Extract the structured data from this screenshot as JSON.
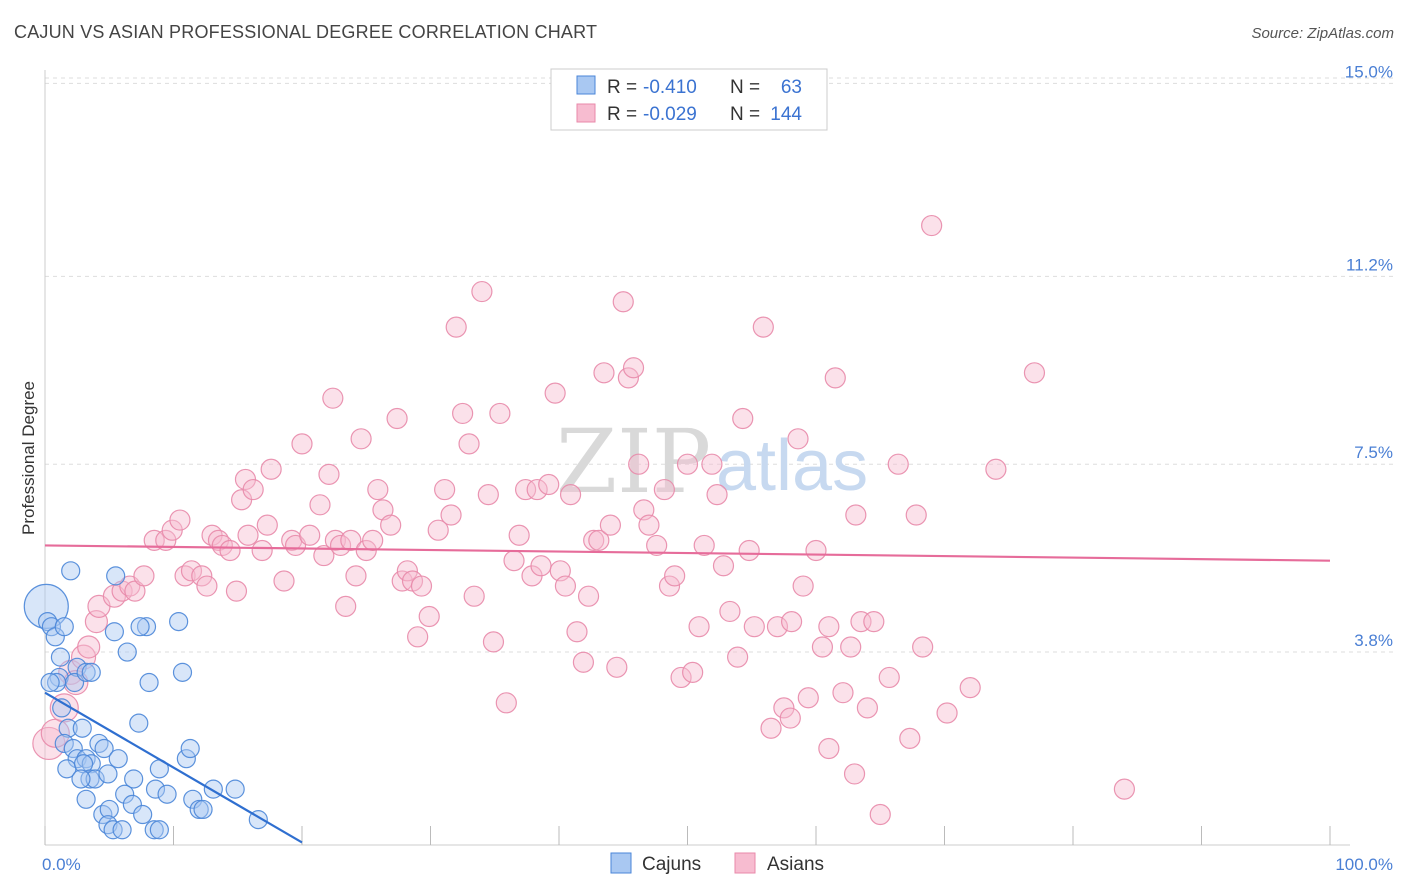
{
  "title": "CAJUN VS ASIAN PROFESSIONAL DEGREE CORRELATION CHART",
  "source": "Source: ZipAtlas.com",
  "watermark": {
    "zip": "ZIP",
    "atlas": "atlas"
  },
  "legend": {
    "rows": [
      {
        "r_label": "R =",
        "r_value": "-0.410",
        "n_label": "N =",
        "n_value": "63"
      },
      {
        "r_label": "R =",
        "r_value": "-0.029",
        "n_label": "N =",
        "n_value": "144"
      }
    ]
  },
  "bottom_legend": [
    "Cajuns",
    "Asians"
  ],
  "colors": {
    "cajun_fill": "#a9c8f2",
    "cajun_stroke": "#4a86d8",
    "cajun_line": "#2f6fd0",
    "asian_fill": "#f7bcd0",
    "asian_stroke": "#e889aa",
    "asian_line": "#e66c9a",
    "grid": "#dddddd",
    "tick_text": "#4a7fd4"
  },
  "chart_data": {
    "type": "scatter",
    "title": "CAJUN VS ASIAN PROFESSIONAL DEGREE CORRELATION CHART",
    "xlabel": "",
    "ylabel": "Professional Degree",
    "xlim": [
      0,
      100
    ],
    "ylim": [
      0,
      15.5
    ],
    "y_ticks": [
      {
        "value": 3.8,
        "label": "3.8%"
      },
      {
        "value": 7.5,
        "label": "7.5%"
      },
      {
        "value": 11.2,
        "label": "11.2%"
      },
      {
        "value": 15.0,
        "label": "15.0%"
      }
    ],
    "x_tick_labels": [
      {
        "value": 0,
        "label": "0.0%"
      },
      {
        "value": 100,
        "label": "100.0%"
      }
    ],
    "series": [
      {
        "name": "Cajuns",
        "r": -0.41,
        "n": 63,
        "trend": {
          "x0": 0,
          "y0": 3.0,
          "x1": 20,
          "y1": 0.05
        },
        "points": [
          [
            0.1,
            4.7,
            22
          ],
          [
            0.2,
            4.4,
            9
          ],
          [
            0.5,
            4.3,
            9
          ],
          [
            0.8,
            4.1,
            9
          ],
          [
            1.1,
            3.3,
            9
          ],
          [
            0.9,
            3.2,
            9
          ],
          [
            0.4,
            3.2,
            9
          ],
          [
            1.2,
            3.7,
            9
          ],
          [
            1.5,
            4.3,
            9
          ],
          [
            2.0,
            5.4,
            9
          ],
          [
            2.5,
            3.5,
            9
          ],
          [
            2.3,
            3.2,
            9
          ],
          [
            3.2,
            3.4,
            9
          ],
          [
            3.6,
            3.4,
            9
          ],
          [
            5.5,
            5.3,
            9
          ],
          [
            5.4,
            4.2,
            9
          ],
          [
            7.9,
            4.3,
            9
          ],
          [
            7.4,
            4.3,
            9
          ],
          [
            10.4,
            4.4,
            9
          ],
          [
            6.4,
            3.8,
            9
          ],
          [
            8.1,
            3.2,
            9
          ],
          [
            10.7,
            3.4,
            9
          ],
          [
            1.3,
            2.7,
            9
          ],
          [
            1.8,
            2.3,
            9
          ],
          [
            2.9,
            2.3,
            9
          ],
          [
            7.3,
            2.4,
            9
          ],
          [
            1.5,
            2.0,
            9
          ],
          [
            2.2,
            1.9,
            9
          ],
          [
            4.2,
            2.0,
            9
          ],
          [
            4.6,
            1.9,
            9
          ],
          [
            2.5,
            1.7,
            9
          ],
          [
            3.2,
            1.7,
            9
          ],
          [
            3.6,
            1.6,
            9
          ],
          [
            5.7,
            1.7,
            9
          ],
          [
            11.0,
            1.7,
            9
          ],
          [
            11.3,
            1.9,
            9
          ],
          [
            1.7,
            1.5,
            9
          ],
          [
            3.0,
            1.6,
            9
          ],
          [
            3.5,
            1.3,
            9
          ],
          [
            3.9,
            1.3,
            9
          ],
          [
            4.9,
            1.4,
            9
          ],
          [
            8.9,
            1.5,
            9
          ],
          [
            2.8,
            1.3,
            9
          ],
          [
            6.9,
            1.3,
            9
          ],
          [
            8.6,
            1.1,
            9
          ],
          [
            13.1,
            1.1,
            9
          ],
          [
            14.8,
            1.1,
            9
          ],
          [
            6.2,
            1.0,
            9
          ],
          [
            9.5,
            1.0,
            9
          ],
          [
            11.5,
            0.9,
            9
          ],
          [
            4.5,
            0.6,
            9
          ],
          [
            5.0,
            0.7,
            9
          ],
          [
            6.8,
            0.8,
            9
          ],
          [
            7.6,
            0.6,
            9
          ],
          [
            12.0,
            0.7,
            9
          ],
          [
            16.6,
            0.5,
            9
          ],
          [
            4.9,
            0.4,
            9
          ],
          [
            5.3,
            0.3,
            9
          ],
          [
            6.0,
            0.3,
            9
          ],
          [
            8.5,
            0.3,
            9
          ],
          [
            8.9,
            0.3,
            9
          ],
          [
            12.3,
            0.7,
            9
          ],
          [
            3.2,
            0.9,
            9
          ]
        ]
      },
      {
        "name": "Asians",
        "r": -0.029,
        "n": 144,
        "trend": {
          "x0": 0,
          "y0": 5.9,
          "x1": 100,
          "y1": 5.6
        },
        "points": [
          [
            0.3,
            2.0,
            16
          ],
          [
            0.8,
            2.2,
            14
          ],
          [
            1.5,
            2.7,
            14
          ],
          [
            2.0,
            3.4,
            12
          ],
          [
            2.4,
            3.2,
            12
          ],
          [
            3.0,
            3.7,
            12
          ],
          [
            3.4,
            3.9,
            11
          ],
          [
            4.0,
            4.4,
            11
          ],
          [
            4.2,
            4.7,
            11
          ],
          [
            5.4,
            4.9,
            11
          ],
          [
            6.0,
            5.0,
            10
          ],
          [
            6.6,
            5.1,
            10
          ],
          [
            7.0,
            5.0,
            10
          ],
          [
            7.7,
            5.3,
            10
          ],
          [
            8.5,
            6.0,
            10
          ],
          [
            9.4,
            6.0,
            10
          ],
          [
            9.9,
            6.2,
            10
          ],
          [
            10.5,
            6.4,
            10
          ],
          [
            10.9,
            5.3,
            10
          ],
          [
            11.4,
            5.4,
            10
          ],
          [
            12.2,
            5.3,
            10
          ],
          [
            12.6,
            5.1,
            10
          ],
          [
            13.0,
            6.1,
            10
          ],
          [
            13.5,
            6.0,
            10
          ],
          [
            13.8,
            5.9,
            10
          ],
          [
            14.4,
            5.8,
            10
          ],
          [
            14.9,
            5.0,
            10
          ],
          [
            15.3,
            6.8,
            10
          ],
          [
            15.6,
            7.2,
            10
          ],
          [
            15.8,
            6.1,
            10
          ],
          [
            16.2,
            7.0,
            10
          ],
          [
            16.9,
            5.8,
            10
          ],
          [
            17.3,
            6.3,
            10
          ],
          [
            17.6,
            7.4,
            10
          ],
          [
            18.6,
            5.2,
            10
          ],
          [
            19.2,
            6.0,
            10
          ],
          [
            19.5,
            5.9,
            10
          ],
          [
            20.0,
            7.9,
            10
          ],
          [
            20.6,
            6.1,
            10
          ],
          [
            21.4,
            6.7,
            10
          ],
          [
            21.7,
            5.7,
            10
          ],
          [
            22.1,
            7.3,
            10
          ],
          [
            22.4,
            8.8,
            10
          ],
          [
            22.6,
            6.0,
            10
          ],
          [
            23.0,
            5.9,
            10
          ],
          [
            23.4,
            4.7,
            10
          ],
          [
            23.8,
            6.0,
            10
          ],
          [
            24.2,
            5.3,
            10
          ],
          [
            24.6,
            8.0,
            10
          ],
          [
            25.0,
            5.8,
            10
          ],
          [
            25.5,
            6.0,
            10
          ],
          [
            25.9,
            7.0,
            10
          ],
          [
            26.3,
            6.6,
            10
          ],
          [
            26.9,
            6.3,
            10
          ],
          [
            27.4,
            8.4,
            10
          ],
          [
            27.8,
            5.2,
            10
          ],
          [
            28.2,
            5.4,
            10
          ],
          [
            28.6,
            5.2,
            10
          ],
          [
            29.0,
            4.1,
            10
          ],
          [
            29.3,
            5.1,
            10
          ],
          [
            29.9,
            4.5,
            10
          ],
          [
            30.6,
            6.2,
            10
          ],
          [
            31.1,
            7.0,
            10
          ],
          [
            31.6,
            6.5,
            10
          ],
          [
            32.0,
            10.2,
            10
          ],
          [
            32.5,
            8.5,
            10
          ],
          [
            33.0,
            7.9,
            10
          ],
          [
            33.4,
            4.9,
            10
          ],
          [
            34.0,
            10.9,
            10
          ],
          [
            34.5,
            6.9,
            10
          ],
          [
            34.9,
            4.0,
            10
          ],
          [
            35.4,
            8.5,
            10
          ],
          [
            35.9,
            2.8,
            10
          ],
          [
            36.5,
            5.6,
            10
          ],
          [
            36.9,
            6.1,
            10
          ],
          [
            37.4,
            7.0,
            10
          ],
          [
            37.9,
            5.3,
            10
          ],
          [
            38.3,
            7.0,
            10
          ],
          [
            38.6,
            5.5,
            10
          ],
          [
            39.2,
            7.1,
            10
          ],
          [
            39.7,
            8.9,
            10
          ],
          [
            40.1,
            5.4,
            10
          ],
          [
            40.5,
            5.1,
            10
          ],
          [
            40.9,
            6.9,
            10
          ],
          [
            41.4,
            4.2,
            10
          ],
          [
            41.9,
            3.6,
            10
          ],
          [
            42.3,
            4.9,
            10
          ],
          [
            42.7,
            6.0,
            10
          ],
          [
            43.1,
            6.0,
            10
          ],
          [
            43.5,
            9.3,
            10
          ],
          [
            44.0,
            6.3,
            10
          ],
          [
            44.5,
            3.5,
            10
          ],
          [
            45.0,
            10.7,
            10
          ],
          [
            45.4,
            9.2,
            10
          ],
          [
            45.8,
            9.4,
            10
          ],
          [
            46.2,
            7.5,
            10
          ],
          [
            46.6,
            6.6,
            10
          ],
          [
            47.0,
            6.3,
            10
          ],
          [
            47.6,
            5.9,
            10
          ],
          [
            48.2,
            7.0,
            10
          ],
          [
            48.6,
            5.1,
            10
          ],
          [
            49.0,
            5.3,
            10
          ],
          [
            49.5,
            3.3,
            10
          ],
          [
            50.0,
            7.5,
            10
          ],
          [
            50.4,
            3.4,
            10
          ],
          [
            50.9,
            4.3,
            10
          ],
          [
            51.3,
            5.9,
            10
          ],
          [
            51.9,
            7.5,
            10
          ],
          [
            52.3,
            6.9,
            10
          ],
          [
            52.8,
            5.5,
            10
          ],
          [
            53.3,
            4.6,
            10
          ],
          [
            53.9,
            3.7,
            10
          ],
          [
            54.3,
            8.4,
            10
          ],
          [
            54.8,
            5.8,
            10
          ],
          [
            55.2,
            4.3,
            10
          ],
          [
            55.9,
            10.2,
            10
          ],
          [
            56.5,
            2.3,
            10
          ],
          [
            57.0,
            4.3,
            10
          ],
          [
            57.5,
            2.7,
            10
          ],
          [
            58.1,
            4.4,
            10
          ],
          [
            58.6,
            8.0,
            10
          ],
          [
            59.0,
            5.1,
            10
          ],
          [
            59.4,
            2.9,
            10
          ],
          [
            60.0,
            5.8,
            10
          ],
          [
            60.5,
            3.9,
            10
          ],
          [
            61.0,
            4.3,
            10
          ],
          [
            61.5,
            9.2,
            10
          ],
          [
            62.1,
            3.0,
            10
          ],
          [
            62.7,
            3.9,
            10
          ],
          [
            63.1,
            6.5,
            10
          ],
          [
            63.5,
            4.4,
            10
          ],
          [
            64.0,
            2.7,
            10
          ],
          [
            64.5,
            4.4,
            10
          ],
          [
            65.0,
            0.6,
            10
          ],
          [
            65.7,
            3.3,
            10
          ],
          [
            66.4,
            7.5,
            10
          ],
          [
            67.3,
            2.1,
            10
          ],
          [
            67.8,
            6.5,
            10
          ],
          [
            68.3,
            3.9,
            10
          ],
          [
            69.0,
            12.2,
            10
          ],
          [
            70.2,
            2.6,
            10
          ],
          [
            72.0,
            3.1,
            10
          ],
          [
            74.0,
            7.4,
            10
          ],
          [
            77.0,
            9.3,
            10
          ],
          [
            84.0,
            1.1,
            10
          ],
          [
            63.0,
            1.4,
            10
          ],
          [
            61.0,
            1.9,
            10
          ],
          [
            58.0,
            2.5,
            10
          ]
        ]
      }
    ]
  }
}
